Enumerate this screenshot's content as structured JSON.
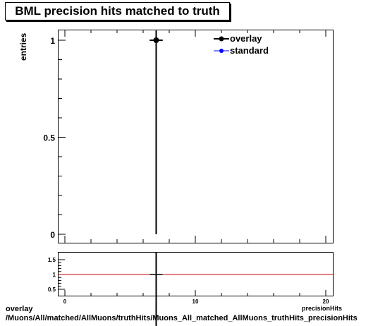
{
  "chart_data": [
    {
      "type": "scatter",
      "title": "BML precision hits matched to truth",
      "ylabel": "entries",
      "xlim": [
        0,
        20
      ],
      "ylim": [
        0,
        1.05
      ],
      "x_ticks": [
        "0",
        "10",
        "20"
      ],
      "y_ticks": [
        "0",
        "0.5",
        "1"
      ],
      "series": [
        {
          "name": "overlay",
          "color": "#000000",
          "points": [
            {
              "x": 7,
              "y": 1,
              "xerr": 0.5,
              "yerr": 1
            }
          ]
        },
        {
          "name": "standard",
          "color": "#0000ff",
          "points": []
        }
      ],
      "legend": "top-right"
    },
    {
      "type": "scatter",
      "ylim": [
        0.3,
        1.75
      ],
      "y_ticks": [
        "0.5",
        "1",
        "1.5"
      ],
      "reference_line": 1,
      "points": [
        {
          "x": 7,
          "y": 1
        }
      ]
    }
  ],
  "footer": {
    "line1": "overlay",
    "line2": "/Muons/All/matched/AllMuons/truthHits/Muons_All_matched_AllMuons_truthHits_precisionHits",
    "xlabel_fragment": "precisionHits"
  },
  "colors": {
    "ratio_line": "#cc0000",
    "marker": "#000000",
    "standard": "#0000ff"
  }
}
